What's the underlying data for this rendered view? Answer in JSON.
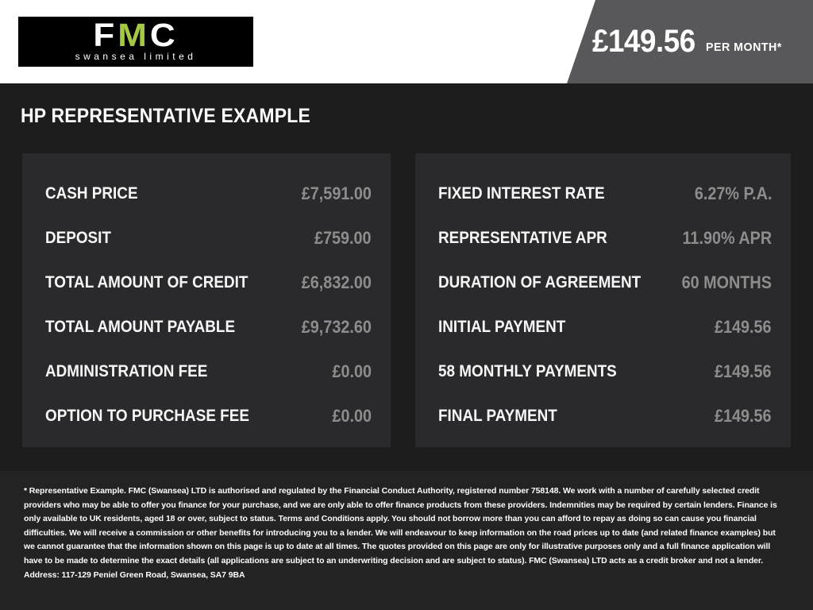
{
  "header": {
    "logo": {
      "letters": [
        "F",
        "M",
        "C"
      ],
      "subtitle": "swansea limited",
      "accent_color": "#a4c843"
    },
    "price": {
      "amount": "£149.56",
      "period": "PER MONTH*"
    }
  },
  "main": {
    "title": "HP REPRESENTATIVE EXAMPLE",
    "left_panel": {
      "rows": [
        {
          "label": "CASH PRICE",
          "value": "£7,591.00"
        },
        {
          "label": "DEPOSIT",
          "value": "£759.00"
        },
        {
          "label": "TOTAL AMOUNT OF CREDIT",
          "value": "£6,832.00"
        },
        {
          "label": "TOTAL AMOUNT PAYABLE",
          "value": "£9,732.60"
        },
        {
          "label": "ADMINISTRATION FEE",
          "value": "£0.00"
        },
        {
          "label": "OPTION TO PURCHASE FEE",
          "value": "£0.00"
        }
      ]
    },
    "right_panel": {
      "rows": [
        {
          "label": "FIXED INTEREST RATE",
          "value": "6.27% P.A."
        },
        {
          "label": "REPRESENTATIVE APR",
          "value": "11.90% APR"
        },
        {
          "label": "DURATION OF AGREEMENT",
          "value": "60 MONTHS"
        },
        {
          "label": "INITIAL PAYMENT",
          "value": "£149.56"
        },
        {
          "label": "58 MONTHLY PAYMENTS",
          "value": "£149.56"
        },
        {
          "label": "FINAL PAYMENT",
          "value": "£149.56"
        }
      ]
    }
  },
  "footer": {
    "disclaimer": "* Representative Example. FMC (Swansea) LTD is authorised and regulated by the Financial Conduct Authority, registered number 758148. We work with a number of carefully selected credit providers who may be able to offer you finance for your purchase, and we are only able to offer finance products from these providers. Indemnities may be required by certain lenders. Finance is only available to UK residents, aged 18 or over, subject to status. Terms and Conditions apply. You should not borrow more than you can afford to repay as doing so can cause you financial difficulties. We will receive a commission or other benefits for introducing you to a lender. We will endeavour to keep information on the road prices up to date (and related finance examples) but we cannot guarantee that the information shown on this page is up to date at all times. The quotes provided on this page are only for illustrative purposes only and a full finance application will have to be made to determine the exact details (all applications are subject to an underwriting decision and are subject to status). FMC (Swansea) LTD acts as a credit broker and not a lender. Address: 117-129 Peniel Green Road, Swansea, SA7 9BA"
  },
  "colors": {
    "brand_green": "#a4c843",
    "header_background": "#ffffff",
    "logo_background": "#000000",
    "price_flag_gray": "#58585a",
    "page_background": "#1d1d1e",
    "panel_background": "#2a2a2c",
    "footer_background": "#232324",
    "value_text_gray": "#8d8d8d"
  }
}
